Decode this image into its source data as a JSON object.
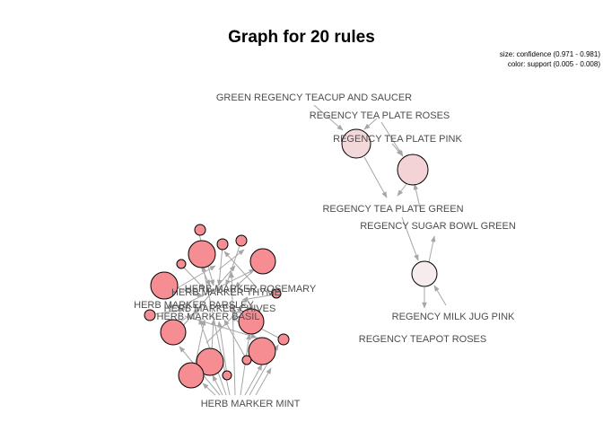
{
  "title": "Graph for 20 rules",
  "legend": {
    "size": "size: confidence (0.971 - 0.981)",
    "color": "color: support (0.005 - 0.008)"
  },
  "items": [
    {
      "id": "teacup",
      "label": "GREEN REGENCY TEACUP AND SAUCER"
    },
    {
      "id": "roses_plate",
      "label": "REGENCY TEA PLATE ROSES"
    },
    {
      "id": "pink_plate",
      "label": "REGENCY TEA PLATE PINK"
    },
    {
      "id": "green_plate",
      "label": "REGENCY TEA PLATE GREEN"
    },
    {
      "id": "sugar_bowl",
      "label": "REGENCY SUGAR BOWL GREEN"
    },
    {
      "id": "milk_jug",
      "label": "REGENCY MILK JUG PINK"
    },
    {
      "id": "teapot",
      "label": "REGENCY TEAPOT ROSES"
    },
    {
      "id": "rosemary",
      "label": "HERB MARKER ROSEMARY"
    },
    {
      "id": "thyme",
      "label": "HERB MARKER THYME"
    },
    {
      "id": "parsley",
      "label": "HERB MARKER PARSLEY"
    },
    {
      "id": "chives",
      "label": "HERB MARKER CHIVES"
    },
    {
      "id": "basil",
      "label": "HERB MARKER BASIL"
    },
    {
      "id": "mint",
      "label": "HERB MARKER MINT"
    }
  ],
  "colors": {
    "edge": "#a6a6a6",
    "support_low": "#f7eced",
    "support_mid": "#f3d3d6",
    "support_high": "#f58d93"
  }
}
